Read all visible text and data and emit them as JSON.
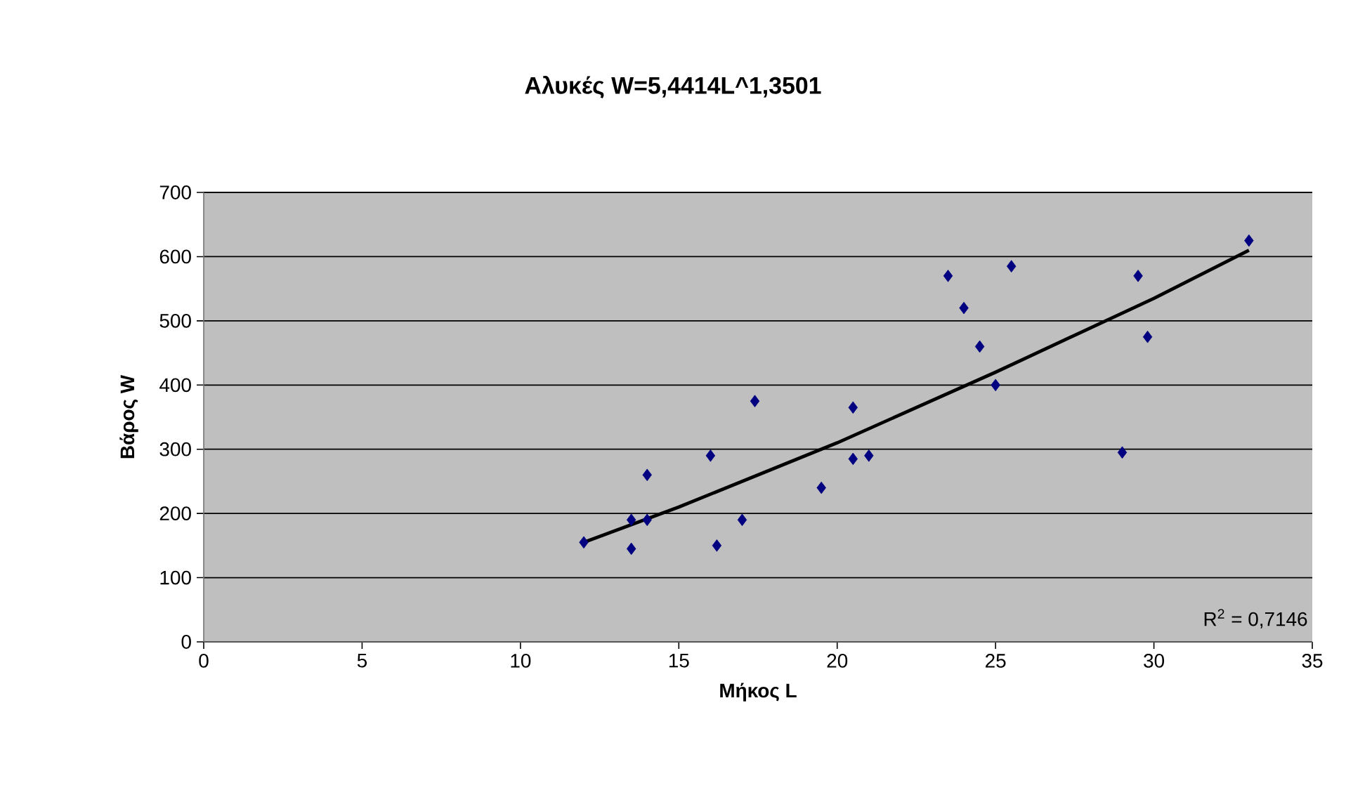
{
  "chart_data": {
    "type": "scatter",
    "title": "Αλυκές W=5,4414L^1,3501",
    "xlabel": "Μήκος L",
    "ylabel": "Βάρος W",
    "x": [
      12,
      13.5,
      13.5,
      14,
      14,
      16,
      16.2,
      17,
      17.4,
      19.5,
      20.5,
      20.5,
      21,
      23.5,
      24,
      24.5,
      25,
      25.5,
      29,
      29.5,
      29.8,
      33
    ],
    "series": [
      {
        "color": "#000080",
        "marker": "diamond",
        "values": [
          155,
          145,
          190,
          190,
          260,
          290,
          150,
          190,
          375,
          240,
          365,
          285,
          290,
          570,
          520,
          460,
          400,
          585,
          295,
          570,
          475,
          625
        ]
      },
      {
        "type": "line",
        "color": "#000000",
        "marker": "none",
        "x": [
          12,
          15,
          20,
          25,
          30,
          33
        ],
        "values": [
          155,
          210,
          310,
          420,
          535,
          610
        ]
      }
    ],
    "xlim": [
      0,
      35
    ],
    "xticks": [
      0,
      5,
      10,
      15,
      20,
      25,
      30,
      35
    ],
    "ylim": [
      0,
      700
    ],
    "yticks": [
      0,
      100,
      200,
      300,
      400,
      500,
      600,
      700
    ],
    "grid": "y",
    "annotations": [
      "R$^{2}$ = 0,7146"
    ]
  }
}
